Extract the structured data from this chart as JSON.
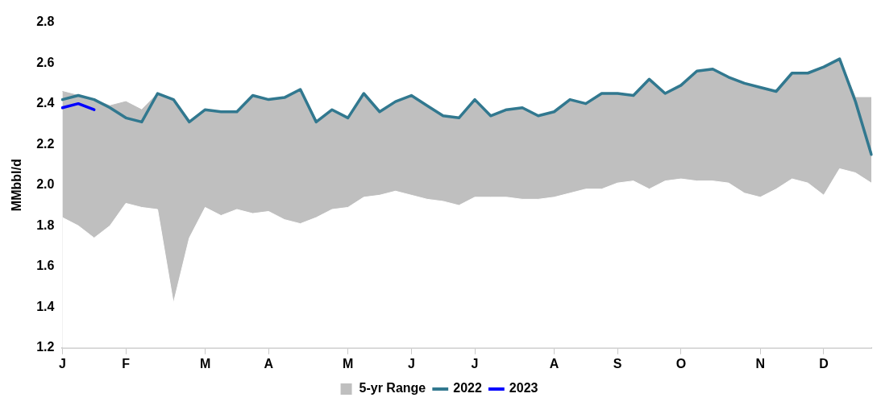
{
  "chart_data": {
    "type": "line",
    "ylabel": "MMbbl/d",
    "categories": [
      "J",
      null,
      null,
      null,
      "F",
      null,
      null,
      null,
      null,
      "M",
      null,
      null,
      null,
      "A",
      null,
      null,
      null,
      null,
      "M",
      null,
      null,
      null,
      "J",
      null,
      null,
      null,
      "J",
      null,
      null,
      null,
      null,
      "A",
      null,
      null,
      null,
      "S",
      null,
      null,
      null,
      "O",
      null,
      null,
      null,
      null,
      "N",
      null,
      null,
      null,
      "D",
      null,
      null,
      null
    ],
    "series": [
      {
        "type": "area",
        "color": "#ffffff",
        "values": [
          1.84,
          1.8,
          1.74,
          1.8,
          1.91,
          1.89,
          1.88,
          1.42,
          1.74,
          1.89,
          1.85,
          1.88,
          1.86,
          1.87,
          1.83,
          1.81,
          1.84,
          1.88,
          1.89,
          1.94,
          1.95,
          1.97,
          1.95,
          1.93,
          1.92,
          1.9,
          1.94,
          1.94,
          1.94,
          1.93,
          1.93,
          1.94,
          1.96,
          1.98,
          1.98,
          2.01,
          2.02,
          1.98,
          2.02,
          2.03,
          2.02,
          2.02,
          2.01,
          1.96,
          1.94,
          1.98,
          2.03,
          2.01,
          1.95,
          2.08,
          2.06,
          2.01
        ]
      },
      {
        "name": "5-yr Range",
        "type": "area",
        "color": "#bfbfbf",
        "values": [
          2.46,
          2.44,
          2.42,
          2.39,
          2.41,
          2.37,
          2.45,
          2.42,
          2.31,
          2.37,
          2.36,
          2.36,
          2.44,
          2.42,
          2.43,
          2.47,
          2.31,
          2.37,
          2.33,
          2.45,
          2.36,
          2.41,
          2.44,
          2.39,
          2.34,
          2.33,
          2.42,
          2.34,
          2.37,
          2.38,
          2.34,
          2.36,
          2.42,
          2.4,
          2.45,
          2.45,
          2.44,
          2.52,
          2.45,
          2.49,
          2.56,
          2.57,
          2.53,
          2.5,
          2.48,
          2.46,
          2.55,
          2.55,
          2.58,
          2.62,
          2.43,
          2.43
        ]
      },
      {
        "name": "2022",
        "type": "line",
        "color": "#31788f",
        "values": [
          2.42,
          2.44,
          2.42,
          2.38,
          2.33,
          2.31,
          2.45,
          2.42,
          2.31,
          2.37,
          2.36,
          2.36,
          2.44,
          2.42,
          2.43,
          2.47,
          2.31,
          2.37,
          2.33,
          2.45,
          2.36,
          2.41,
          2.44,
          2.39,
          2.34,
          2.33,
          2.42,
          2.34,
          2.37,
          2.38,
          2.34,
          2.36,
          2.42,
          2.4,
          2.45,
          2.45,
          2.44,
          2.52,
          2.45,
          2.49,
          2.56,
          2.57,
          2.53,
          2.5,
          2.48,
          2.46,
          2.55,
          2.55,
          2.58,
          2.62,
          2.41,
          2.15
        ]
      },
      {
        "name": "2023",
        "type": "line",
        "color": "#0000ff",
        "values": [
          2.38,
          2.4,
          2.37,
          null,
          null,
          null,
          null,
          null,
          null,
          null,
          null,
          null,
          null,
          null,
          null,
          null,
          null,
          null,
          null,
          null,
          null,
          null,
          null,
          null,
          null,
          null,
          null,
          null,
          null,
          null,
          null,
          null,
          null,
          null,
          null,
          null,
          null,
          null,
          null,
          null,
          null,
          null,
          null,
          null,
          null,
          null,
          null,
          null,
          null,
          null,
          null,
          null
        ]
      }
    ],
    "ylim": [
      1.2,
      2.8
    ],
    "yticks": [
      1.2,
      1.4,
      1.6,
      1.8,
      {
        "value": 2,
        "label": "2.0"
      },
      2.2,
      2.4,
      2.6,
      2.8
    ],
    "grid": false,
    "legend": "bottom",
    "marker": "none",
    "line_style": "solid"
  }
}
